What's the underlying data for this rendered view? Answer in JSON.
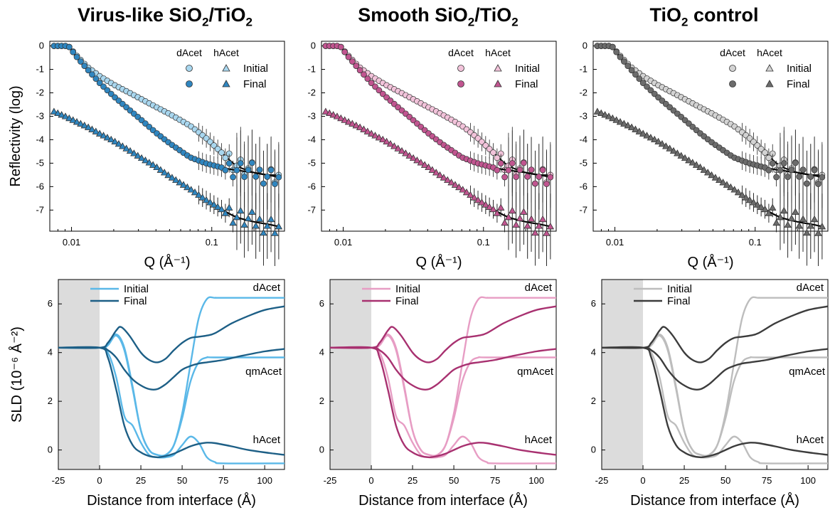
{
  "titles": [
    {
      "main": "Virus-like SiO",
      "sub1": "2",
      "mid": "/TiO",
      "sub2": "2",
      "tail": ""
    },
    {
      "main": "Smooth SiO",
      "sub1": "2",
      "mid": "/TiO",
      "sub2": "2",
      "tail": ""
    },
    {
      "main": "TiO",
      "sub1": "2",
      "mid": " control",
      "sub2": "",
      "tail": ""
    }
  ],
  "palettes": [
    {
      "light": "#a9d7ef",
      "dark": "#2f86c0",
      "light_line": "#5ab8e8",
      "dark_line": "#1d5f86"
    },
    {
      "light": "#f2c3da",
      "dark": "#c15590",
      "light_line": "#e79dc4",
      "dark_line": "#a83170"
    },
    {
      "light": "#d3d3d3",
      "dark": "#6c6c6c",
      "light_line": "#bdbdbd",
      "dark_line": "#3c3c3c"
    }
  ],
  "legend_top": {
    "dacet": "dAcet",
    "hacet": "hAcet",
    "initial": "Initial",
    "final": "Final"
  },
  "legend_bottom": {
    "initial": "Initial",
    "final": "Final"
  },
  "curve_labels": {
    "dacet": "dAcet",
    "qmacet": "qmAcet",
    "hacet": "hAcet"
  },
  "chart_data": [
    {
      "type": "scatter",
      "panel": "top",
      "title": "",
      "ylabel": "Reflectivity (log)",
      "xlabel": "Q (Å⁻¹)",
      "xscale": "log",
      "xlim": [
        0.007,
        0.33
      ],
      "ylim": [
        -7.9,
        0.2
      ],
      "xticks": [
        "0.01",
        "0.1"
      ],
      "yticks": [
        "0",
        "-1",
        "-2",
        "-3",
        "-4",
        "-5",
        "-6",
        "-7"
      ],
      "series": [
        {
          "name": "dAcet Initial",
          "x": [
            0.0075,
            0.0085,
            0.0095,
            0.011,
            0.013,
            0.016,
            0.02,
            0.025,
            0.03,
            0.04,
            0.05,
            0.07,
            0.09,
            0.12,
            0.15,
            0.2,
            0.25,
            0.3
          ],
          "y": [
            0,
            0,
            0,
            -0.45,
            -0.9,
            -1.3,
            -1.65,
            -1.95,
            -2.2,
            -2.6,
            -2.9,
            -3.4,
            -3.9,
            -4.6,
            -5.1,
            -5.4,
            -5.5,
            -5.5
          ]
        },
        {
          "name": "dAcet Final",
          "x": [
            0.0075,
            0.0085,
            0.0095,
            0.011,
            0.013,
            0.016,
            0.02,
            0.025,
            0.03,
            0.04,
            0.05,
            0.07,
            0.09,
            0.12,
            0.15,
            0.2,
            0.25,
            0.3
          ],
          "y": [
            0,
            0,
            0,
            -0.5,
            -1.0,
            -1.6,
            -2.15,
            -2.65,
            -3.05,
            -3.7,
            -4.15,
            -4.75,
            -5.0,
            -5.2,
            -5.3,
            -5.4,
            -5.5,
            -5.6
          ]
        },
        {
          "name": "hAcet Initial",
          "x": [
            0.0075,
            0.009,
            0.011,
            0.013,
            0.016,
            0.02,
            0.025,
            0.03,
            0.04,
            0.05,
            0.07,
            0.09,
            0.12,
            0.15,
            0.2,
            0.25,
            0.3
          ],
          "y": [
            -2.8,
            -3.0,
            -3.25,
            -3.45,
            -3.75,
            -4.05,
            -4.4,
            -4.7,
            -5.15,
            -5.55,
            -6.1,
            -6.55,
            -7.0,
            -7.3,
            -7.5,
            -7.6,
            -7.7
          ]
        },
        {
          "name": "hAcet Final",
          "x": [
            0.0075,
            0.009,
            0.011,
            0.013,
            0.016,
            0.02,
            0.025,
            0.03,
            0.04,
            0.05,
            0.07,
            0.09,
            0.12,
            0.15,
            0.2,
            0.25,
            0.3
          ],
          "y": [
            -2.8,
            -3.0,
            -3.25,
            -3.45,
            -3.75,
            -4.05,
            -4.4,
            -4.7,
            -5.15,
            -5.55,
            -6.1,
            -6.55,
            -7.0,
            -7.3,
            -7.5,
            -7.6,
            -7.7
          ]
        }
      ]
    },
    {
      "type": "line",
      "panel": "bottom",
      "title": "",
      "ylabel": "SLD (10⁻⁶ Å⁻²)",
      "xlabel": "Distance from interface (Å)",
      "xlim": [
        -25,
        112
      ],
      "ylim": [
        -0.8,
        7.0
      ],
      "xticks": [
        "-25",
        "0",
        "25",
        "50",
        "75",
        "100"
      ],
      "yticks": [
        "0",
        "2",
        "4",
        "6"
      ],
      "shaded_region": [
        -25,
        0
      ],
      "series": [
        {
          "name": "Initial dAcet",
          "x": [
            -25,
            0,
            5,
            10,
            15,
            20,
            25,
            30,
            35,
            40,
            45,
            50,
            55,
            60,
            65,
            70,
            75,
            112
          ],
          "y": [
            4.2,
            4.2,
            4.3,
            4.75,
            4.2,
            2.6,
            0.8,
            0.0,
            -0.2,
            -0.2,
            0.2,
            1.5,
            3.5,
            5.4,
            6.2,
            6.25,
            6.25,
            6.25
          ]
        },
        {
          "name": "Initial qmAcet",
          "x": [
            -25,
            0,
            5,
            10,
            15,
            20,
            25,
            30,
            35,
            40,
            45,
            50,
            55,
            60,
            65,
            70,
            112
          ],
          "y": [
            4.2,
            4.2,
            4.3,
            4.7,
            4.1,
            2.5,
            0.8,
            0.0,
            -0.2,
            -0.2,
            0.2,
            1.3,
            2.8,
            3.6,
            3.8,
            3.8,
            3.8
          ]
        },
        {
          "name": "Initial hAcet",
          "x": [
            -25,
            0,
            5,
            10,
            15,
            20,
            25,
            30,
            35,
            40,
            45,
            50,
            55,
            60,
            65,
            70,
            75,
            112
          ],
          "y": [
            4.2,
            4.2,
            4.0,
            3.0,
            1.4,
            1.0,
            0.3,
            -0.2,
            -0.3,
            -0.3,
            -0.2,
            0.2,
            0.55,
            0.3,
            -0.3,
            -0.5,
            -0.55,
            -0.55
          ]
        },
        {
          "name": "Final dAcet",
          "x": [
            -25,
            0,
            5,
            10,
            13,
            18,
            25,
            30,
            35,
            40,
            45,
            50,
            55,
            60,
            65,
            70,
            80,
            90,
            100,
            112
          ],
          "y": [
            4.2,
            4.2,
            4.4,
            4.9,
            5.05,
            4.7,
            4.0,
            3.7,
            3.6,
            3.75,
            4.1,
            4.4,
            4.6,
            4.65,
            4.7,
            4.8,
            5.2,
            5.5,
            5.75,
            5.9
          ]
        },
        {
          "name": "Final qmAcet",
          "x": [
            -25,
            0,
            5,
            10,
            15,
            20,
            25,
            30,
            35,
            40,
            45,
            50,
            55,
            60,
            65,
            75,
            85,
            100,
            112
          ],
          "y": [
            4.2,
            4.2,
            4.1,
            3.8,
            3.3,
            2.9,
            2.65,
            2.5,
            2.5,
            2.7,
            3.0,
            3.3,
            3.45,
            3.55,
            3.6,
            3.7,
            3.85,
            4.05,
            4.15
          ]
        },
        {
          "name": "Final hAcet",
          "x": [
            -25,
            0,
            5,
            10,
            15,
            20,
            25,
            30,
            35,
            40,
            45,
            50,
            55,
            60,
            65,
            70,
            80,
            90,
            100,
            112
          ],
          "y": [
            4.2,
            4.2,
            3.8,
            2.5,
            1.0,
            0.2,
            -0.1,
            -0.25,
            -0.3,
            -0.25,
            -0.15,
            0.0,
            0.15,
            0.25,
            0.3,
            0.28,
            0.15,
            0.0,
            -0.1,
            -0.2
          ]
        }
      ]
    }
  ]
}
